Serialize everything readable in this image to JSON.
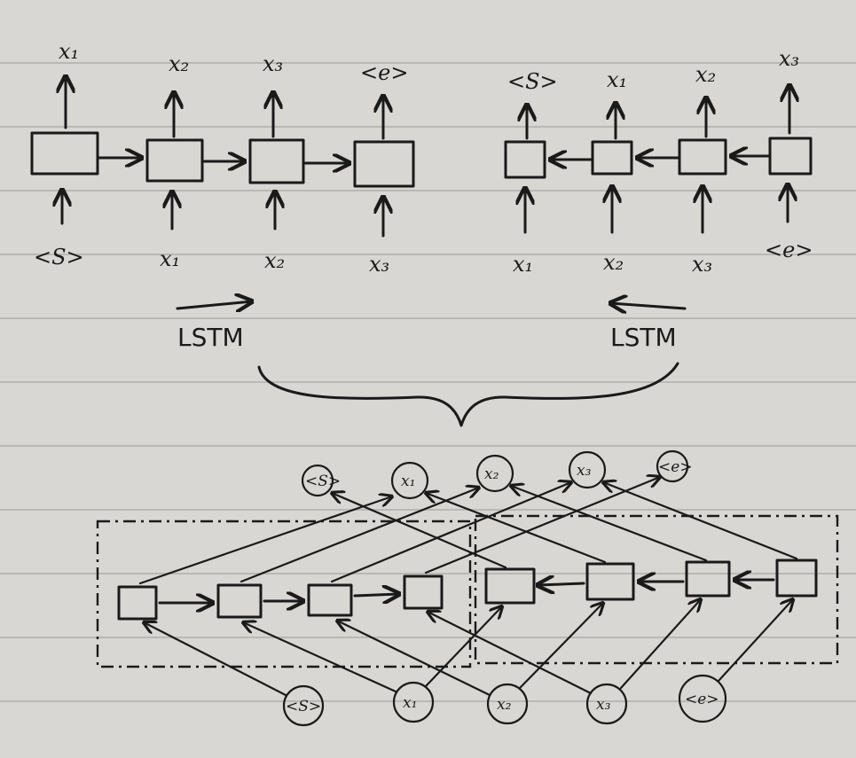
{
  "diagram": {
    "forward_lstm": {
      "title": "LSTM",
      "inputs": [
        "<S>",
        "x₁",
        "x₂",
        "x₃"
      ],
      "outputs": [
        "x₁",
        "x₂",
        "x₃",
        "<e>"
      ]
    },
    "backward_lstm": {
      "title": "LSTM",
      "inputs": [
        "x₁",
        "x₂",
        "x₃",
        "<e>"
      ],
      "outputs": [
        "<S>",
        "x₁",
        "x₂",
        "x₃"
      ]
    },
    "combined": {
      "inputs": [
        "<S>",
        "x₁",
        "x₂",
        "x₃",
        "<e>"
      ],
      "outputs": [
        "<S>",
        "x₁",
        "x₂",
        "x₃",
        "<e>"
      ]
    }
  }
}
